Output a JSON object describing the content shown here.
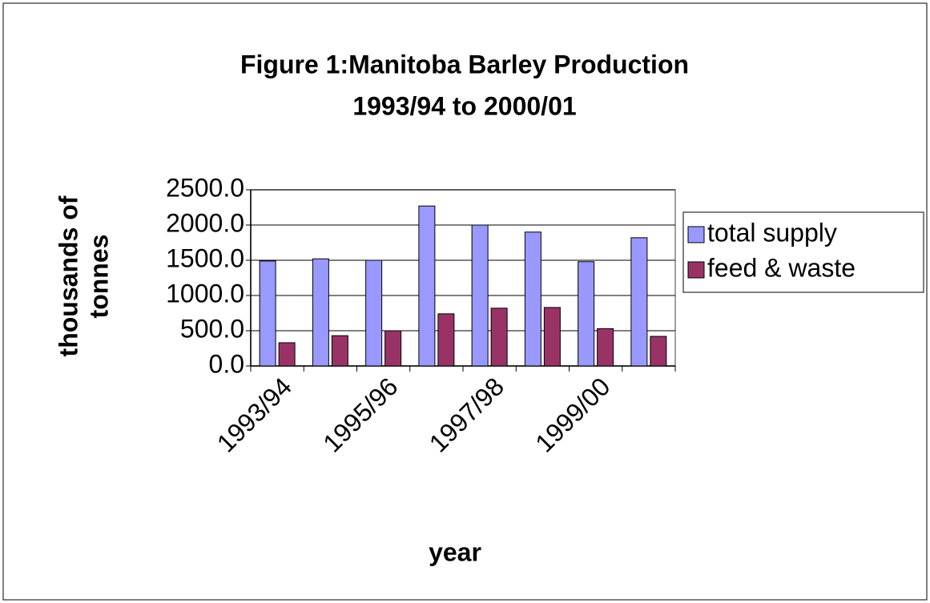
{
  "chart_data": {
    "type": "bar",
    "title": [
      "Figure 1:Manitoba Barley Production",
      "1993/94 to 2000/01"
    ],
    "y_label": [
      "thousands of",
      "tonnes"
    ],
    "x_label": "year",
    "categories": [
      "1993/94",
      null,
      "1995/96",
      null,
      "1997/98",
      null,
      "1999/00",
      null
    ],
    "series": [
      {
        "name": "total supply",
        "color": "#9999ff",
        "values": [
          1490,
          1520,
          1500,
          2270,
          2000,
          1900,
          1480,
          1820
        ]
      },
      {
        "name": "feed & waste",
        "color": "#993366",
        "values": [
          330,
          430,
          500,
          740,
          820,
          830,
          530,
          420
        ]
      }
    ],
    "ylim": [
      0,
      2500
    ],
    "yticks": [
      {
        "value": 0,
        "label": "0.0"
      },
      {
        "value": 500,
        "label": "500.0"
      },
      {
        "value": 1000,
        "label": "1000.0"
      },
      {
        "value": 1500,
        "label": "1500.0"
      },
      {
        "value": 2000,
        "label": "2000.0"
      },
      {
        "value": 2500,
        "label": "2500.0"
      }
    ],
    "grid": true,
    "legend": "right"
  }
}
